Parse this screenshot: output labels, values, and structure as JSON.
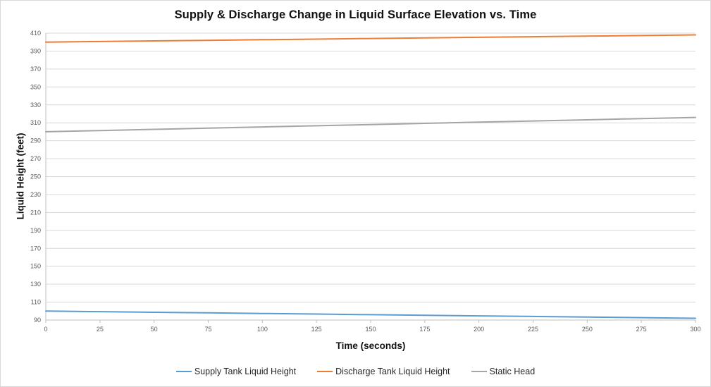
{
  "chart_data": {
    "type": "line",
    "title": "Supply & Discharge Change in Liquid Surface Elevation vs. Time",
    "xlabel": "Time (seconds)",
    "ylabel": "Liquid Height (feet)",
    "xlim": [
      0,
      300
    ],
    "ylim": [
      90,
      410
    ],
    "x_ticks": [
      0,
      25,
      50,
      75,
      100,
      125,
      150,
      175,
      200,
      225,
      250,
      275,
      300
    ],
    "y_ticks": [
      90,
      110,
      130,
      150,
      170,
      190,
      210,
      230,
      250,
      270,
      290,
      310,
      330,
      350,
      370,
      390,
      410
    ],
    "grid": "horizontal",
    "legend_position": "bottom-center",
    "x": [
      0,
      25,
      50,
      75,
      100,
      125,
      150,
      175,
      200,
      225,
      250,
      275,
      300
    ],
    "series": [
      {
        "name": "Supply Tank Liquid Height",
        "color": "#5B9BD5",
        "values": [
          100,
          99.33,
          98.67,
          98,
          97.33,
          96.67,
          96,
          95.33,
          94.67,
          94,
          93.33,
          92.67,
          92
        ]
      },
      {
        "name": "Discharge Tank Liquid Height",
        "color": "#ED7D31",
        "values": [
          400,
          400.67,
          401.33,
          402,
          402.67,
          403.33,
          404,
          404.67,
          405.33,
          406,
          406.67,
          407.33,
          408
        ]
      },
      {
        "name": "Static Head",
        "color": "#A5A5A5",
        "values": [
          300,
          301.33,
          302.67,
          304,
          305.33,
          306.67,
          308,
          309.33,
          310.67,
          312,
          313.33,
          314.67,
          316
        ]
      }
    ],
    "colors": {
      "gridline": "#D9D9D9",
      "axis": "#BFBFBF",
      "tick_text": "#595959",
      "title_text": "#111111",
      "legend_text": "#262626",
      "background": "#FFFFFF"
    }
  }
}
